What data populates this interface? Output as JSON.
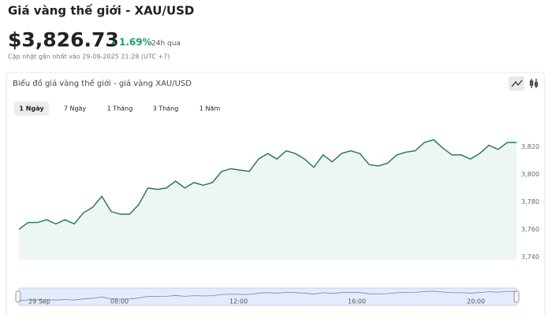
{
  "header": {
    "title": "Giá vàng thế giới - XAU/USD",
    "price": "$3,826.73",
    "change": "1.69%",
    "period": "24h qua",
    "updated": "Cập nhật gần nhất vào 29-09-2025 21:28 (UTC +7)"
  },
  "panel_title": "Biểu đồ giá vàng thế giới - giá vàng XAU/USD",
  "tabs": [
    "1 Ngày",
    "7 Ngày",
    "1 Tháng",
    "3 Tháng",
    "1 Năm"
  ],
  "chart_data": {
    "type": "line",
    "color": "#2b7a5c",
    "fill": "#eef6f1",
    "grid": false,
    "values": [
      3760,
      3765,
      3765,
      3767,
      3764,
      3767,
      3764,
      3772,
      3776,
      3784,
      3773,
      3771,
      3771,
      3778,
      3790,
      3789,
      3790,
      3795,
      3790,
      3794,
      3792,
      3794,
      3802,
      3804,
      3803,
      3802,
      3811,
      3815,
      3811,
      3817,
      3815,
      3811,
      3805,
      3814,
      3809,
      3815,
      3817,
      3815,
      3807,
      3806,
      3808,
      3814,
      3816,
      3817,
      3823,
      3825,
      3819,
      3814,
      3814,
      3811,
      3815,
      3821,
      3818,
      3823,
      3823
    ],
    "ylim": [
      3738,
      3835
    ],
    "yticks": [
      {
        "value": 3740,
        "label": "3,740"
      },
      {
        "value": 3760,
        "label": "3,760"
      },
      {
        "value": 3780,
        "label": "3,780"
      },
      {
        "value": 3800,
        "label": "3,800"
      },
      {
        "value": 3820,
        "label": "3,820"
      }
    ],
    "navigator_labels": [
      "29 Sep",
      "08:00",
      "12:00",
      "16:00",
      "20:00"
    ]
  }
}
